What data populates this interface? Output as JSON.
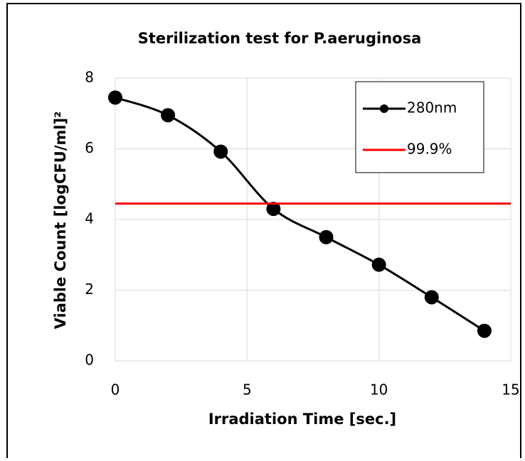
{
  "chart_data": {
    "type": "line",
    "title": "Sterilization test for P.aeruginosa",
    "x_label": "Irradiation Time [sec.]",
    "y_label": "Viable Count [logCFU/ml]²",
    "series": [
      {
        "name": "280nm",
        "color": "#000000",
        "x": [
          0,
          2,
          4,
          6,
          8,
          10,
          12,
          14
        ],
        "values": [
          7.45,
          6.95,
          5.92,
          4.3,
          3.5,
          2.72,
          1.8,
          0.85
        ],
        "markers": true,
        "smooth": true
      },
      {
        "name": "99.9%",
        "color": "#ff0000",
        "x": [
          0,
          15
        ],
        "values": [
          4.45,
          4.45
        ],
        "markers": false,
        "smooth": false
      }
    ],
    "xlim": [
      0,
      15
    ],
    "xticks": [
      0,
      5,
      10,
      15
    ],
    "ylim": [
      0,
      8
    ],
    "yticks": [
      0,
      2,
      4,
      6,
      8
    ],
    "grid": true,
    "legend": "top-right"
  }
}
